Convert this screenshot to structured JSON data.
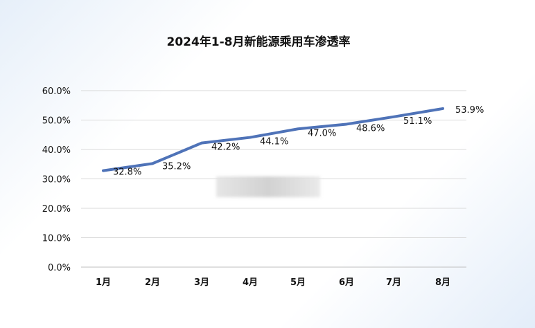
{
  "chart_data": {
    "type": "line",
    "title": "2024年1-8月新能源乘用车渗透率",
    "categories": [
      "1月",
      "2月",
      "3月",
      "4月",
      "5月",
      "6月",
      "7月",
      "8月"
    ],
    "series": [
      {
        "values": [
          32.8,
          35.2,
          42.2,
          44.1,
          47.0,
          48.6,
          51.1,
          53.9
        ]
      }
    ],
    "data_labels": [
      "32.8%",
      "35.2%",
      "42.2%",
      "44.1%",
      "47.0%",
      "48.6%",
      "51.1%",
      "53.9%"
    ],
    "y_ticks": [
      "0.0%",
      "10.0%",
      "20.0%",
      "30.0%",
      "40.0%",
      "50.0%",
      "60.0%"
    ],
    "ylim": [
      0,
      60
    ],
    "grid": true,
    "line_color": "#4f73b8"
  }
}
